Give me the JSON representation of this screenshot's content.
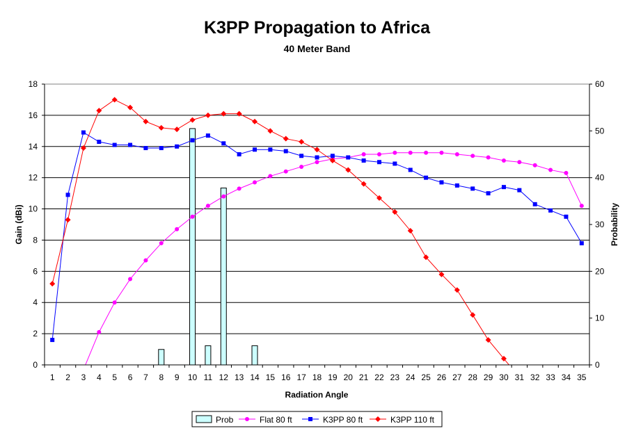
{
  "colors": {
    "prob_fill": "#ccffff",
    "flat": "#ff00ff",
    "k3pp80": "#0000ff",
    "k3pp110": "#ff0000"
  },
  "chart_data": {
    "type": "line",
    "title": "K3PP Propagation to Africa",
    "subtitle": "40 Meter Band",
    "xlabel": "Radiation Angle",
    "ylabel": "Gain (dBi)",
    "y2label": "Probability",
    "categories": [
      "1",
      "2",
      "3",
      "4",
      "5",
      "6",
      "7",
      "8",
      "9",
      "10",
      "11",
      "12",
      "13",
      "14",
      "15",
      "16",
      "17",
      "18",
      "19",
      "20",
      "21",
      "22",
      "23",
      "24",
      "25",
      "26",
      "27",
      "28",
      "29",
      "30",
      "31",
      "32",
      "33",
      "34",
      "35"
    ],
    "ylim": [
      0,
      18
    ],
    "y_ticks": [
      "0",
      "2",
      "4",
      "6",
      "8",
      "10",
      "12",
      "14",
      "16",
      "18"
    ],
    "y2lim": [
      0,
      60
    ],
    "y2_ticks": [
      "0",
      "10",
      "20",
      "30",
      "40",
      "50",
      "60"
    ],
    "grid": true,
    "legend_position": "bottom",
    "series": [
      {
        "name": "Prob",
        "type": "bar",
        "axis": "right",
        "color": "#ccffff",
        "values": [
          0,
          0,
          0,
          0,
          0,
          0,
          0,
          3.3,
          0,
          50.5,
          4.1,
          37.8,
          0,
          4.1,
          0,
          0,
          0,
          0,
          0,
          0,
          0,
          0,
          0,
          0,
          0,
          0,
          0,
          0,
          0,
          0,
          0,
          0,
          0,
          0,
          0
        ]
      },
      {
        "name": "Flat 80 ft",
        "type": "line",
        "axis": "left",
        "color": "#ff00ff",
        "marker": "circle",
        "values": [
          null,
          null,
          -0.3,
          2.1,
          4.0,
          5.5,
          6.7,
          7.8,
          8.7,
          9.5,
          10.2,
          10.8,
          11.3,
          11.7,
          12.1,
          12.4,
          12.7,
          13.0,
          13.2,
          13.3,
          13.5,
          13.5,
          13.6,
          13.6,
          13.6,
          13.6,
          13.5,
          13.4,
          13.3,
          13.1,
          13.0,
          12.8,
          12.5,
          12.3,
          10.2
        ]
      },
      {
        "name": "K3PP 80 ft",
        "type": "line",
        "axis": "left",
        "color": "#0000ff",
        "marker": "square",
        "values": [
          1.6,
          10.9,
          14.9,
          14.3,
          14.1,
          14.1,
          13.9,
          13.9,
          14.0,
          14.4,
          14.7,
          14.2,
          13.5,
          13.8,
          13.8,
          13.7,
          13.4,
          13.3,
          13.4,
          13.3,
          13.1,
          13.0,
          12.9,
          12.5,
          12.0,
          11.7,
          11.5,
          11.3,
          11.0,
          11.4,
          11.2,
          10.3,
          9.9,
          9.5,
          7.8
        ]
      },
      {
        "name": "K3PP 110 ft",
        "type": "line",
        "axis": "left",
        "color": "#ff0000",
        "marker": "diamond",
        "values": [
          5.2,
          9.3,
          13.9,
          16.3,
          17.0,
          16.5,
          15.6,
          15.2,
          15.1,
          15.7,
          16.0,
          16.1,
          16.1,
          15.6,
          15.0,
          14.5,
          14.3,
          13.8,
          13.1,
          12.5,
          11.6,
          10.7,
          9.8,
          8.6,
          6.9,
          5.8,
          4.8,
          3.2,
          1.6,
          0.4,
          -0.8,
          null,
          null,
          null,
          null
        ]
      }
    ]
  }
}
